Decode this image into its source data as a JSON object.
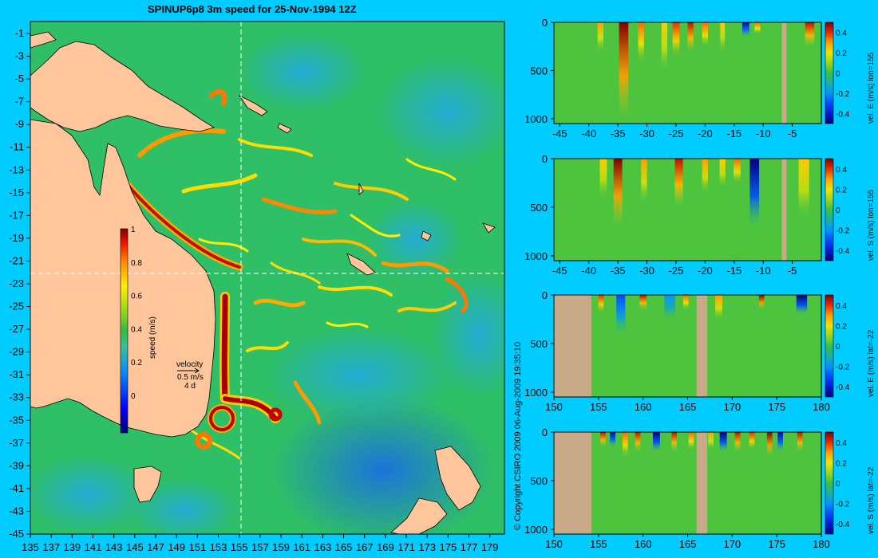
{
  "title": "SPINUP6p8 3m speed for 25-Nov-1994 12Z",
  "copyright": "© Copyright CSIRO 2009   06-Aug-2009 19:35:10",
  "map": {
    "lon_ticks": [
      "135",
      "137",
      "139",
      "141",
      "143",
      "145",
      "147",
      "149",
      "151",
      "153",
      "155",
      "157",
      "159",
      "161",
      "163",
      "165",
      "167",
      "169",
      "171",
      "173",
      "175",
      "177",
      "179"
    ],
    "lat_ticks": [
      "-1",
      "-3",
      "-5",
      "-7",
      "-9",
      "-11",
      "-13",
      "-15",
      "-17",
      "-19",
      "-21",
      "-23",
      "-25",
      "-27",
      "-29",
      "-31",
      "-33",
      "-35",
      "-37",
      "-39",
      "-41",
      "-43",
      "-45"
    ],
    "colorbar": {
      "ticks": [
        "1",
        "0.8",
        "0.6",
        "0.4",
        "0.2",
        "0"
      ],
      "label": "speed (m/s)"
    },
    "velocity_legend": {
      "title": "velocity",
      "scale": "0.5 m/s",
      "days": "4 d"
    },
    "colors": {
      "ocean": "#2fbf66",
      "land": "#fec69a",
      "background": "#00ccff"
    }
  },
  "chart_data": [
    {
      "type": "heatmap",
      "panel": "vel-e-lon155",
      "x_ticks": [
        "-45",
        "-40",
        "-35",
        "-30",
        "-25",
        "-20",
        "-15",
        "-10",
        "-5"
      ],
      "y_ticks": [
        "0",
        "500",
        "1000"
      ],
      "colorbar_ticks": [
        "0.4",
        "0.2",
        "0",
        "-0.2",
        "-0.4"
      ],
      "colorbar_label": "vel. E (m/s) lon=155",
      "xlim": [
        -46,
        0
      ],
      "ylim": [
        1050,
        0
      ],
      "clim": [
        -0.5,
        0.5
      ],
      "features": [
        {
          "x": -38,
          "w": 1.0,
          "v": 0.3,
          "depth": 300
        },
        {
          "x": -34,
          "w": 1.6,
          "v": 0.5,
          "depth": 1000
        },
        {
          "x": -31,
          "w": 1.0,
          "v": 0.35,
          "depth": 400
        },
        {
          "x": -27,
          "w": 1.0,
          "v": 0.25,
          "depth": 500
        },
        {
          "x": -25,
          "w": 1.2,
          "v": 0.4,
          "depth": 350
        },
        {
          "x": -22.5,
          "w": 1.0,
          "v": 0.45,
          "depth": 300
        },
        {
          "x": -20,
          "w": 1.0,
          "v": 0.35,
          "depth": 250
        },
        {
          "x": -17,
          "w": 0.8,
          "v": 0.25,
          "depth": 300
        },
        {
          "x": -13,
          "w": 1.2,
          "v": -0.45,
          "depth": 150
        },
        {
          "x": -11,
          "w": 1.0,
          "v": 0.35,
          "depth": 120
        },
        {
          "x": -2,
          "w": 1.6,
          "v": 0.45,
          "depth": 250
        }
      ],
      "land": [
        {
          "x0": -6.8,
          "x1": -6.0
        }
      ]
    },
    {
      "type": "heatmap",
      "panel": "vel-s-lon155",
      "x_ticks": [
        "-45",
        "-40",
        "-35",
        "-30",
        "-25",
        "-20",
        "-15",
        "-10",
        "-5"
      ],
      "y_ticks": [
        "0",
        "500",
        "1000"
      ],
      "colorbar_ticks": [
        "0.4",
        "0.2",
        "0",
        "-0.2",
        "-0.4"
      ],
      "colorbar_label": "vel. S (m/s) lon=155",
      "xlim": [
        -46,
        0
      ],
      "ylim": [
        1050,
        0
      ],
      "clim": [
        -0.5,
        0.5
      ],
      "features": [
        {
          "x": -37.5,
          "w": 1.2,
          "v": 0.25,
          "depth": 400
        },
        {
          "x": -35,
          "w": 1.5,
          "v": 0.5,
          "depth": 700
        },
        {
          "x": -30.5,
          "w": 1.0,
          "v": 0.3,
          "depth": 450
        },
        {
          "x": -24.5,
          "w": 1.4,
          "v": 0.45,
          "depth": 500
        },
        {
          "x": -20,
          "w": 1.0,
          "v": 0.3,
          "depth": 350
        },
        {
          "x": -17,
          "w": 1.0,
          "v": 0.25,
          "depth": 300
        },
        {
          "x": -14.5,
          "w": 1.2,
          "v": 0.35,
          "depth": 250
        },
        {
          "x": -11.5,
          "w": 1.6,
          "v": -0.5,
          "depth": 700
        },
        {
          "x": -3,
          "w": 1.8,
          "v": 0.25,
          "depth": 600
        }
      ],
      "land": [
        {
          "x0": -6.8,
          "x1": -6.0
        }
      ]
    },
    {
      "type": "heatmap",
      "panel": "vel-e-lat-22",
      "x_ticks": [
        "150",
        "155",
        "160",
        "165",
        "170",
        "175",
        "180"
      ],
      "y_ticks": [
        "0",
        "500",
        "1000"
      ],
      "colorbar_ticks": [
        "0.4",
        "0.2",
        "0",
        "-0.2",
        "-0.4"
      ],
      "colorbar_label": "vel. E (m/s) lat=-22",
      "xlim": [
        150,
        180
      ],
      "ylim": [
        1050,
        0
      ],
      "clim": [
        -0.5,
        0.5
      ],
      "features": [
        {
          "x": 155.3,
          "w": 0.6,
          "v": 0.4,
          "depth": 180
        },
        {
          "x": 157.5,
          "w": 1.0,
          "v": -0.3,
          "depth": 400
        },
        {
          "x": 160.0,
          "w": 0.8,
          "v": 0.45,
          "depth": 150
        },
        {
          "x": 163.0,
          "w": 1.2,
          "v": -0.2,
          "depth": 250
        },
        {
          "x": 164.8,
          "w": 0.6,
          "v": 0.35,
          "depth": 150
        },
        {
          "x": 168.5,
          "w": 0.8,
          "v": 0.3,
          "depth": 250
        },
        {
          "x": 173.3,
          "w": 0.6,
          "v": 0.5,
          "depth": 150
        },
        {
          "x": 177.8,
          "w": 1.2,
          "v": -0.5,
          "depth": 200
        }
      ],
      "land": [
        {
          "x0": 150,
          "x1": 154.2
        },
        {
          "x0": 166,
          "x1": 167.2
        }
      ]
    },
    {
      "type": "heatmap",
      "panel": "vel-s-lat-22",
      "x_ticks": [
        "150",
        "155",
        "160",
        "165",
        "170",
        "175",
        "180"
      ],
      "y_ticks": [
        "0",
        "500",
        "1000"
      ],
      "colorbar_ticks": [
        "0.4",
        "0.2",
        "0",
        "-0.2",
        "-0.4"
      ],
      "colorbar_label": "vel. S (m/s) lat=-22",
      "xlim": [
        150,
        180
      ],
      "ylim": [
        1050,
        0
      ],
      "clim": [
        -0.5,
        0.5
      ],
      "features": [
        {
          "x": 155.5,
          "w": 0.6,
          "v": 0.45,
          "depth": 150
        },
        {
          "x": 156.6,
          "w": 0.6,
          "v": -0.45,
          "depth": 150
        },
        {
          "x": 158.0,
          "w": 0.6,
          "v": 0.35,
          "depth": 250
        },
        {
          "x": 159.4,
          "w": 0.6,
          "v": 0.45,
          "depth": 200
        },
        {
          "x": 161.5,
          "w": 0.8,
          "v": -0.5,
          "depth": 200
        },
        {
          "x": 163.5,
          "w": 0.6,
          "v": 0.45,
          "depth": 200
        },
        {
          "x": 165.4,
          "w": 0.6,
          "v": 0.35,
          "depth": 180
        },
        {
          "x": 167.6,
          "w": 0.6,
          "v": 0.3,
          "depth": 180
        },
        {
          "x": 169.0,
          "w": 0.8,
          "v": -0.5,
          "depth": 200
        },
        {
          "x": 170.6,
          "w": 0.6,
          "v": 0.45,
          "depth": 200
        },
        {
          "x": 172.2,
          "w": 0.6,
          "v": 0.4,
          "depth": 180
        },
        {
          "x": 174.2,
          "w": 0.6,
          "v": 0.5,
          "depth": 250
        },
        {
          "x": 175.4,
          "w": 0.6,
          "v": -0.45,
          "depth": 200
        },
        {
          "x": 177.6,
          "w": 0.6,
          "v": 0.45,
          "depth": 200
        }
      ],
      "land": [
        {
          "x0": 150,
          "x1": 154.2
        },
        {
          "x0": 166,
          "x1": 167.2
        }
      ]
    }
  ]
}
